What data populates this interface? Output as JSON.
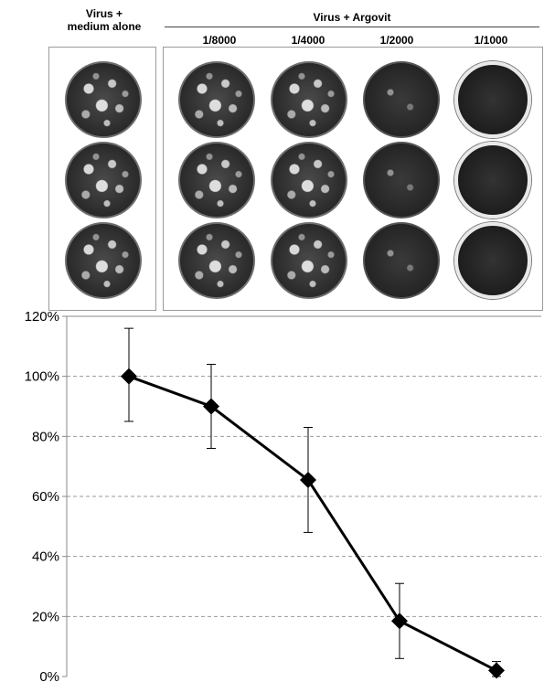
{
  "header": {
    "control_label_line1": "Virus +",
    "control_label_line2": "medium alone",
    "group_label": "Virus + Argovit",
    "dilutions": [
      "1/8000",
      "1/4000",
      "1/2000",
      "1/1000"
    ]
  },
  "chart_data": {
    "type": "line",
    "x": [
      "Virus + medium alone",
      "1/8000",
      "1/4000",
      "1/2000",
      "1/1000"
    ],
    "series": [
      {
        "values": [
          100,
          90,
          65.5,
          18.5,
          2
        ],
        "error_high": [
          116,
          104,
          83,
          31,
          5
        ],
        "error_low": [
          85,
          76,
          48,
          6,
          0
        ]
      }
    ],
    "ylim": [
      0,
      120
    ],
    "yticks": [
      0,
      20,
      40,
      60,
      80,
      100,
      120
    ],
    "ytick_labels": [
      "0%",
      "20%",
      "40%",
      "60%",
      "80%",
      "100%",
      "120%"
    ],
    "grid": "horizontal-dashed",
    "marker": "diamond",
    "line_color": "#000000"
  }
}
